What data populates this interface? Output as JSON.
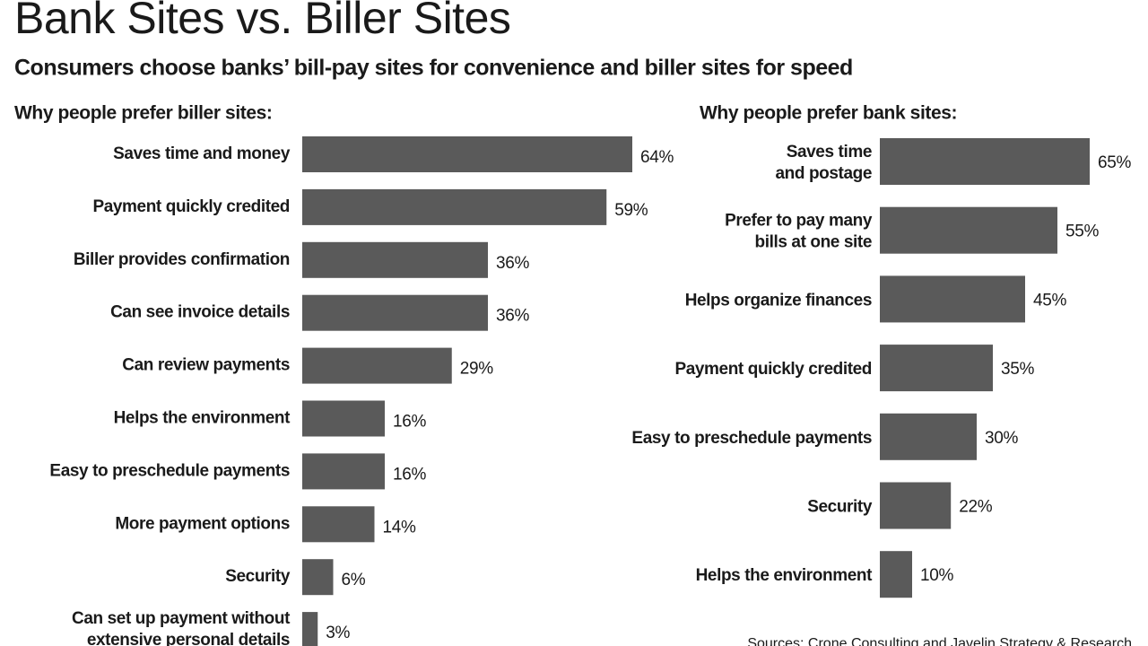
{
  "title": "Bank Sites vs. Biller Sites",
  "subtitle": "Consumers choose banks’ bill-pay sites for convenience and biller sites for speed",
  "source": "Sources: Crone Consulting and Javelin Strategy & Research",
  "chart_data": [
    {
      "type": "bar",
      "orientation": "horizontal",
      "title": "Why people prefer biller sites:",
      "color": "#5a5a5a",
      "categories": [
        "Saves time and money",
        "Payment quickly credited",
        "Biller provides confirmation",
        "Can see invoice details",
        "Can review payments",
        "Helps the environment",
        "Easy to preschedule payments",
        "More payment options",
        "Security",
        "Can set up payment without\nextensive personal details"
      ],
      "values": [
        64,
        59,
        36,
        36,
        29,
        16,
        16,
        14,
        6,
        3
      ],
      "value_labels": [
        "64%",
        "59%",
        "36%",
        "36%",
        "29%",
        "16%",
        "16%",
        "14%",
        "6%",
        "3%"
      ]
    },
    {
      "type": "bar",
      "orientation": "horizontal",
      "title": "Why people prefer bank sites:",
      "color": "#5a5a5a",
      "categories": [
        "Saves time\nand postage",
        "Prefer to pay many\nbills at one site",
        "Helps organize finances",
        "Payment quickly credited",
        "Easy to preschedule payments",
        "Security",
        "Helps the environment"
      ],
      "values": [
        65,
        55,
        45,
        35,
        30,
        22,
        10
      ],
      "value_labels": [
        "65%",
        "55%",
        "45%",
        "35%",
        "30%",
        "22%",
        "10%"
      ]
    }
  ]
}
